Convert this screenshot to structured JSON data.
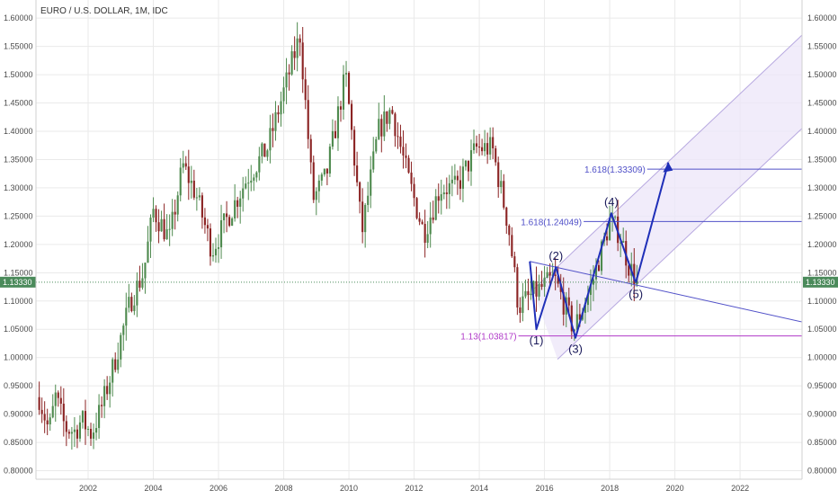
{
  "chart_data": {
    "type": "candlestick",
    "title": "EURO / U.S. DOLLAR, 1M, IDC",
    "xlim": [
      2000.4,
      2023.9
    ],
    "ylim": [
      0.785,
      1.632
    ],
    "x_ticks": [
      2002,
      2004,
      2006,
      2008,
      2010,
      2012,
      2014,
      2016,
      2018,
      2020,
      2022
    ],
    "x_tick_labels": [
      "2002",
      "2004",
      "2006",
      "2008",
      "2010",
      "2012",
      "2014",
      "2016",
      "2018",
      "2020",
      "2022"
    ],
    "y_ticks": [
      0.8,
      0.85,
      0.9,
      0.95,
      1.0,
      1.05,
      1.1,
      1.15,
      1.2,
      1.25,
      1.3,
      1.35,
      1.4,
      1.45,
      1.5,
      1.55,
      1.6
    ],
    "y_tick_labels": [
      "0.80000",
      "0.85000",
      "0.90000",
      "0.95000",
      "1.00000",
      "1.05000",
      "1.10000",
      "1.15000",
      "1.20000",
      "1.25000",
      "1.30000",
      "1.35000",
      "1.40000",
      "1.45000",
      "1.50000",
      "1.55000",
      "1.60000"
    ],
    "grid": true,
    "current_price": {
      "value": 1.1333,
      "label": "1.13330",
      "color": "#4a8a5a"
    },
    "colors": {
      "up": "#4e8a4e",
      "down": "#8b2323",
      "wave": "#1f2fb8",
      "fib": "#5050c8",
      "channel": "#b7a8e0",
      "fib_low": "#b03ac8"
    },
    "anchors": [
      {
        "x": 2000.5,
        "y": 0.93
      },
      {
        "x": 2000.8,
        "y": 0.87
      },
      {
        "x": 2001.0,
        "y": 0.93
      },
      {
        "x": 2001.3,
        "y": 0.875
      },
      {
        "x": 2001.6,
        "y": 0.87
      },
      {
        "x": 2001.8,
        "y": 0.89
      },
      {
        "x": 2002.1,
        "y": 0.865
      },
      {
        "x": 2002.4,
        "y": 0.91
      },
      {
        "x": 2002.8,
        "y": 0.99
      },
      {
        "x": 2003.3,
        "y": 1.1
      },
      {
        "x": 2003.7,
        "y": 1.15
      },
      {
        "x": 2004.0,
        "y": 1.26
      },
      {
        "x": 2004.5,
        "y": 1.21
      },
      {
        "x": 2004.9,
        "y": 1.34
      },
      {
        "x": 2005.3,
        "y": 1.29
      },
      {
        "x": 2005.8,
        "y": 1.19
      },
      {
        "x": 2006.3,
        "y": 1.25
      },
      {
        "x": 2006.9,
        "y": 1.32
      },
      {
        "x": 2007.5,
        "y": 1.37
      },
      {
        "x": 2008.0,
        "y": 1.47
      },
      {
        "x": 2008.5,
        "y": 1.57
      },
      {
        "x": 2008.9,
        "y": 1.28
      },
      {
        "x": 2009.3,
        "y": 1.32
      },
      {
        "x": 2009.9,
        "y": 1.5
      },
      {
        "x": 2010.4,
        "y": 1.22
      },
      {
        "x": 2010.9,
        "y": 1.4
      },
      {
        "x": 2011.3,
        "y": 1.44
      },
      {
        "x": 2011.8,
        "y": 1.32
      },
      {
        "x": 2012.3,
        "y": 1.22
      },
      {
        "x": 2012.8,
        "y": 1.3
      },
      {
        "x": 2013.3,
        "y": 1.3
      },
      {
        "x": 2013.9,
        "y": 1.37
      },
      {
        "x": 2014.4,
        "y": 1.37
      },
      {
        "x": 2014.9,
        "y": 1.23
      },
      {
        "x": 2015.2,
        "y": 1.09
      },
      {
        "x": 2015.6,
        "y": 1.11
      },
      {
        "x": 2016.3,
        "y": 1.14
      },
      {
        "x": 2016.9,
        "y": 1.05
      },
      {
        "x": 2017.4,
        "y": 1.12
      },
      {
        "x": 2018.0,
        "y": 1.24
      },
      {
        "x": 2018.3,
        "y": 1.22
      },
      {
        "x": 2018.6,
        "y": 1.16
      },
      {
        "x": 2018.85,
        "y": 1.135
      }
    ],
    "waves": [
      {
        "label": "(1)",
        "x": 2015.75,
        "y": 1.05
      },
      {
        "label": "(2)",
        "x": 2016.35,
        "y": 1.16
      },
      {
        "label": "(3)",
        "x": 2016.95,
        "y": 1.035
      },
      {
        "label": "(4)",
        "x": 2018.05,
        "y": 1.255
      },
      {
        "label": "(5)",
        "x": 2018.8,
        "y": 1.132
      }
    ],
    "projection": {
      "x": 2019.8,
      "y": 1.345
    },
    "fib_levels": [
      {
        "label": "1.618(1.33309)",
        "value": 1.33309,
        "x_start": 2019.15
      },
      {
        "label": "1.618(1.24049)",
        "value": 1.24049,
        "x_start": 2017.2
      },
      {
        "label": "1.13(1.03817)",
        "value": 1.03817,
        "x_start": 2015.2
      }
    ],
    "trendline": [
      {
        "x": 2015.55,
        "y": 1.17
      },
      {
        "x": 2023.9,
        "y": 1.063
      }
    ],
    "channel": {
      "upper": [
        {
          "x": 2015.65,
          "y": 1.12
        },
        {
          "x": 2023.9,
          "y": 1.57
        }
      ],
      "lower": [
        {
          "x": 2016.4,
          "y": 0.997
        },
        {
          "x": 2023.9,
          "y": 1.405
        }
      ]
    }
  }
}
